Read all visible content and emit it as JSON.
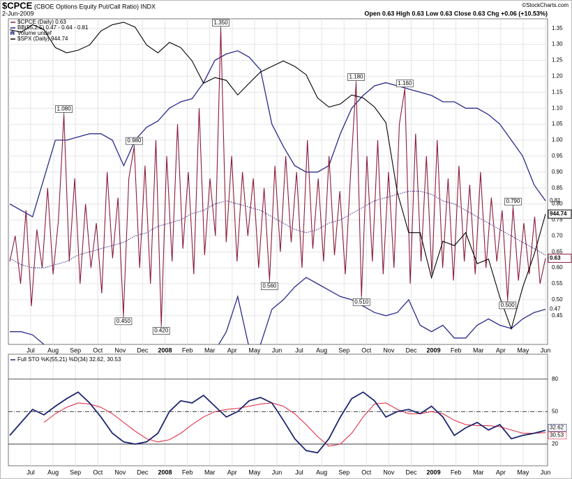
{
  "header": {
    "symbol": "$CPCE",
    "description": "(CBOE Options Equity Put/Call Ratio) INDX",
    "date": "2-Jun-2009",
    "credit": "©StockCharts.com",
    "quote": "Open 0.63 High 0.63 Low 0.63 Close 0.63 Chg +0.06 (+10.53%)"
  },
  "chart_data": [
    {
      "type": "line",
      "x_labels": [
        "Jul",
        "Aug",
        "Sep",
        "Oct",
        "Nov",
        "Dec",
        "2008",
        "Feb",
        "Mar",
        "Apr",
        "May",
        "Jun",
        "Jul",
        "Aug",
        "Sep",
        "Oct",
        "Nov",
        "Dec",
        "2009",
        "Feb",
        "Mar",
        "Apr",
        "May",
        "Jun"
      ],
      "ylim": [
        0.36,
        1.38
      ],
      "yticks": [
        0.45,
        {
          "value": 0.5,
          "label": "0.50"
        },
        0.55,
        {
          "value": 0.6,
          "label": "0.60"
        },
        0.65,
        {
          "value": 0.7,
          "label": "0.70"
        },
        0.75,
        {
          "value": 0.8,
          "label": "0.80"
        },
        0.85,
        {
          "value": 0.9,
          "label": "0.90"
        },
        0.95,
        {
          "value": 1.0,
          "label": "1.00"
        },
        1.05,
        {
          "value": 1.1,
          "label": "1.10"
        },
        1.15,
        {
          "value": 1.2,
          "label": "1.20"
        },
        1.25,
        {
          "value": 1.3,
          "label": "1.30"
        },
        1.35
      ],
      "y2lim": [
        672,
        1574
      ],
      "y2scale": "log",
      "grid": true,
      "legend_extra": "Volume undef",
      "series": [
        {
          "name": "$CPCE (Daily) 0.63",
          "color": "#8b1a3a",
          "end_label": "0.63",
          "values": [
            0.62,
            0.7,
            0.55,
            0.78,
            0.48,
            0.72,
            0.6,
            0.85,
            0.58,
            0.75,
            1.08,
            0.62,
            0.88,
            0.55,
            0.8,
            0.6,
            0.74,
            0.52,
            0.9,
            0.63,
            0.82,
            0.45,
            0.88,
            0.98,
            0.6,
            0.92,
            0.55,
            1.0,
            0.42,
            0.95,
            0.62,
            1.05,
            0.66,
            0.9,
            0.58,
            1.1,
            0.64,
            0.88,
            0.7,
            1.35,
            0.68,
            0.95,
            0.62,
            0.9,
            0.7,
            0.88,
            0.6,
            0.85,
            0.56,
            0.92,
            0.65,
            0.95,
            0.68,
            0.9,
            0.6,
            1.0,
            0.66,
            0.88,
            0.62,
            0.95,
            0.64,
            0.84,
            0.58,
            0.9,
            1.18,
            0.51,
            0.95,
            0.62,
            1.0,
            0.58,
            0.9,
            0.6,
            1.05,
            1.16,
            0.55,
            1.02,
            0.62,
            0.95,
            0.58,
            1.0,
            0.6,
            0.88,
            0.56,
            0.92,
            0.62,
            0.86,
            0.58,
            0.9,
            0.6,
            0.82,
            0.62,
            0.78,
            0.5,
            0.79,
            0.56,
            0.74,
            0.58,
            0.76,
            0.55,
            0.63
          ],
          "value_labels": [
            null,
            null,
            null,
            null,
            null,
            null,
            null,
            null,
            null,
            null,
            "1.080",
            null,
            null,
            null,
            null,
            null,
            null,
            null,
            null,
            null,
            null,
            "0.450",
            null,
            "0.980",
            null,
            null,
            null,
            null,
            "0.420",
            null,
            null,
            null,
            null,
            null,
            null,
            null,
            null,
            null,
            null,
            "1.350",
            null,
            null,
            null,
            null,
            null,
            null,
            null,
            null,
            "0.560",
            null,
            null,
            null,
            null,
            null,
            null,
            null,
            null,
            null,
            null,
            null,
            null,
            null,
            null,
            null,
            "1.180",
            "0.510",
            null,
            null,
            null,
            null,
            null,
            null,
            null,
            "1.160",
            null,
            null,
            null,
            null,
            null,
            null,
            null,
            null,
            null,
            null,
            null,
            null,
            null,
            null,
            null,
            null,
            null,
            null,
            "0.500",
            "0.790",
            null,
            null,
            null,
            null,
            null,
            null
          ]
        },
        {
          "name": "$SPX (Daily) 944.74",
          "color": "#000000",
          "axis": "y2",
          "end_label": "944.74",
          "values": [
            1530,
            1520,
            1550,
            1530,
            1460,
            1440,
            1450,
            1470,
            1525,
            1550,
            1560,
            1540,
            1470,
            1440,
            1480,
            1460,
            1410,
            1330,
            1350,
            1340,
            1290,
            1330,
            1370,
            1390,
            1410,
            1390,
            1360,
            1280,
            1250,
            1260,
            1290,
            1280,
            1250,
            1200,
            1000,
            900,
            900,
            800,
            880,
            870,
            900,
            830,
            840,
            760,
            700,
            780,
            850,
            944.74
          ]
        }
      ],
      "bands": {
        "name": "BB(55,2.5) 0.47 - 0.64 - 0.81",
        "color": "#2a2a8c",
        "upper_label": "0.81",
        "lower_label": "0.47",
        "upper": [
          0.8,
          0.78,
          0.76,
          0.88,
          1.0,
          1.0,
          1.01,
          1.02,
          1.02,
          1.0,
          0.92,
          1.0,
          1.04,
          1.06,
          1.1,
          1.12,
          1.13,
          1.18,
          1.25,
          1.27,
          1.28,
          1.26,
          1.22,
          1.05,
          0.98,
          0.92,
          0.9,
          0.9,
          0.92,
          1.02,
          1.1,
          1.14,
          1.17,
          1.18,
          1.17,
          1.16,
          1.15,
          1.14,
          1.12,
          1.12,
          1.1,
          1.1,
          1.08,
          1.05,
          1.0,
          0.95,
          0.86,
          0.81
        ],
        "middle": [
          0.63,
          0.61,
          0.6,
          0.6,
          0.61,
          0.62,
          0.64,
          0.65,
          0.66,
          0.67,
          0.68,
          0.7,
          0.71,
          0.73,
          0.74,
          0.75,
          0.77,
          0.78,
          0.8,
          0.81,
          0.8,
          0.79,
          0.78,
          0.76,
          0.74,
          0.72,
          0.71,
          0.72,
          0.74,
          0.75,
          0.77,
          0.79,
          0.81,
          0.82,
          0.83,
          0.84,
          0.84,
          0.83,
          0.81,
          0.8,
          0.78,
          0.76,
          0.74,
          0.72,
          0.7,
          0.68,
          0.66,
          0.64
        ],
        "lower": [
          0.4,
          0.4,
          0.39,
          0.36,
          0.33,
          0.32,
          0.3,
          0.3,
          0.29,
          0.3,
          0.33,
          0.3,
          0.3,
          0.3,
          0.28,
          0.3,
          0.3,
          0.32,
          0.34,
          0.4,
          0.51,
          0.35,
          0.36,
          0.47,
          0.5,
          0.54,
          0.57,
          0.55,
          0.53,
          0.51,
          0.5,
          0.48,
          0.46,
          0.45,
          0.46,
          0.5,
          0.42,
          0.4,
          0.42,
          0.38,
          0.38,
          0.42,
          0.44,
          0.42,
          0.41,
          0.44,
          0.46,
          0.47
        ]
      }
    },
    {
      "type": "line",
      "title": "Full STO %K(55,21) %D(34) 32.62,",
      "x_labels": [
        "Jul",
        "Aug",
        "Sep",
        "Oct",
        "Nov",
        "Dec",
        "2008",
        "Feb",
        "Mar",
        "Apr",
        "May",
        "Jun",
        "Jul",
        "Aug",
        "Sep",
        "Oct",
        "Nov",
        "Dec",
        "2009",
        "Feb",
        "Mar",
        "Apr",
        "May",
        "Jun"
      ],
      "ylim": [
        0,
        103
      ],
      "yticks": [
        20,
        50,
        80
      ],
      "ref_lines": [
        "solid",
        "dashdot",
        "solid"
      ],
      "series": [
        {
          "color": "#1c2570",
          "end_label": "32.62",
          "values": [
            28,
            40,
            52,
            47,
            55,
            62,
            68,
            58,
            45,
            30,
            22,
            20,
            22,
            30,
            50,
            60,
            58,
            65,
            55,
            45,
            50,
            60,
            63,
            58,
            42,
            25,
            14,
            12,
            25,
            45,
            62,
            68,
            60,
            45,
            50,
            52,
            48,
            55,
            45,
            28,
            35,
            40,
            33,
            38,
            25,
            28,
            30,
            32.62
          ]
        },
        {
          "color": "#e0203a",
          "end_label": "30.53",
          "values": [
            null,
            null,
            null,
            40,
            48,
            54,
            58,
            57,
            54,
            48,
            40,
            32,
            25,
            22,
            24,
            30,
            38,
            45,
            50,
            52,
            53,
            55,
            57,
            58,
            55,
            48,
            38,
            27,
            18,
            20,
            30,
            45,
            57,
            58,
            52,
            48,
            48,
            50,
            48,
            42,
            38,
            37,
            37,
            36,
            33,
            30,
            30,
            30.53
          ]
        }
      ]
    }
  ]
}
